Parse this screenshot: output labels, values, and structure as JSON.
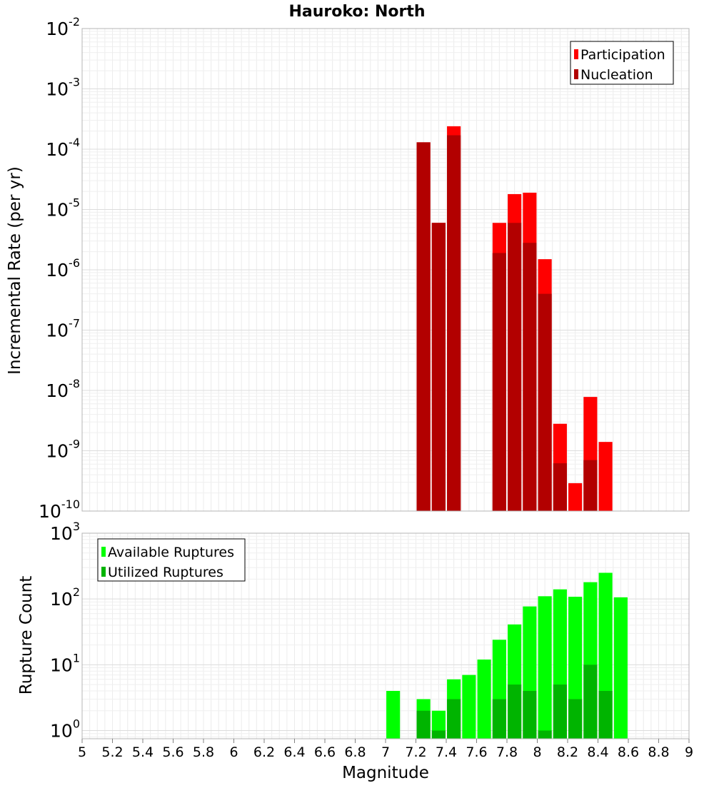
{
  "chart_data": [
    {
      "type": "bar",
      "title": "Hauroko: North",
      "ylabel": "Incremental Rate (per yr)",
      "xlabel": "",
      "yscale": "log",
      "ylim": [
        1e-10,
        0.01
      ],
      "y_tick_exponents": [
        -2,
        -3,
        -4,
        -5,
        -6,
        -7,
        -8,
        -9,
        -10
      ],
      "bar_width": 0.09,
      "overlay": true,
      "legend_position": "top-right",
      "grid": true,
      "series": [
        {
          "name": "Participation",
          "color": "#ff0000",
          "points": [
            {
              "x": 7.25,
              "y": 0.00013
            },
            {
              "x": 7.35,
              "y": 6e-06
            },
            {
              "x": 7.45,
              "y": 0.00024
            },
            {
              "x": 7.75,
              "y": 6e-06
            },
            {
              "x": 7.85,
              "y": 1.8e-05
            },
            {
              "x": 7.95,
              "y": 1.9e-05
            },
            {
              "x": 8.05,
              "y": 1.5e-06
            },
            {
              "x": 8.15,
              "y": 2.8e-09
            },
            {
              "x": 8.25,
              "y": 2.9e-10
            },
            {
              "x": 8.35,
              "y": 7.8e-09
            },
            {
              "x": 8.45,
              "y": 1.4e-09
            }
          ]
        },
        {
          "name": "Nucleation",
          "color": "#b20000",
          "points": [
            {
              "x": 7.25,
              "y": 0.00013
            },
            {
              "x": 7.35,
              "y": 6e-06
            },
            {
              "x": 7.45,
              "y": 0.00017
            },
            {
              "x": 7.75,
              "y": 1.9e-06
            },
            {
              "x": 7.85,
              "y": 6e-06
            },
            {
              "x": 7.95,
              "y": 2.8e-06
            },
            {
              "x": 8.05,
              "y": 4e-07
            },
            {
              "x": 8.15,
              "y": 6.2e-10
            },
            {
              "x": 8.35,
              "y": 7e-10
            }
          ]
        }
      ]
    },
    {
      "type": "bar",
      "title": "",
      "ylabel": "Rupture Count",
      "xlabel": "Magnitude",
      "yscale": "log",
      "ylim": [
        0.75,
        1000
      ],
      "y_tick_exponents": [
        3,
        2,
        1,
        0
      ],
      "xlim": [
        5,
        9
      ],
      "x_ticks": [
        "5",
        "5.2",
        "5.4",
        "5.6",
        "5.8",
        "6",
        "6.2",
        "6.4",
        "6.6",
        "6.8",
        "7",
        "7.2",
        "7.4",
        "7.6",
        "7.8",
        "8",
        "8.2",
        "8.4",
        "8.6",
        "8.8",
        "9"
      ],
      "bar_width": 0.09,
      "overlay": true,
      "legend_position": "top-left",
      "grid": true,
      "series": [
        {
          "name": "Available Ruptures",
          "color": "#00ff00",
          "points": [
            {
              "x": 7.05,
              "y": 4
            },
            {
              "x": 7.25,
              "y": 3
            },
            {
              "x": 7.35,
              "y": 2
            },
            {
              "x": 7.45,
              "y": 6
            },
            {
              "x": 7.55,
              "y": 7
            },
            {
              "x": 7.65,
              "y": 12
            },
            {
              "x": 7.75,
              "y": 24
            },
            {
              "x": 7.85,
              "y": 41
            },
            {
              "x": 7.95,
              "y": 77
            },
            {
              "x": 8.05,
              "y": 110
            },
            {
              "x": 8.15,
              "y": 140
            },
            {
              "x": 8.25,
              "y": 108
            },
            {
              "x": 8.35,
              "y": 180
            },
            {
              "x": 8.45,
              "y": 250
            },
            {
              "x": 8.55,
              "y": 106
            }
          ]
        },
        {
          "name": "Utilized Ruptures",
          "color": "#00b400",
          "points": [
            {
              "x": 7.25,
              "y": 2
            },
            {
              "x": 7.35,
              "y": 1
            },
            {
              "x": 7.45,
              "y": 3
            },
            {
              "x": 7.75,
              "y": 3
            },
            {
              "x": 7.85,
              "y": 5
            },
            {
              "x": 7.95,
              "y": 4
            },
            {
              "x": 8.05,
              "y": 1
            },
            {
              "x": 8.15,
              "y": 5
            },
            {
              "x": 8.25,
              "y": 3
            },
            {
              "x": 8.35,
              "y": 10
            },
            {
              "x": 8.45,
              "y": 4
            }
          ]
        }
      ]
    }
  ]
}
